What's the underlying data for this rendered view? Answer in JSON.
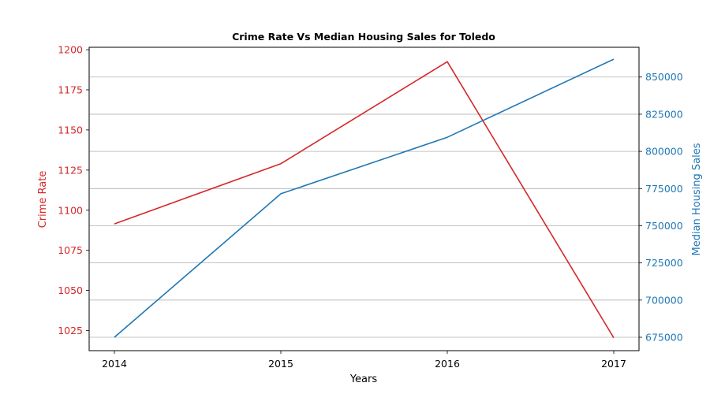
{
  "chart_data": {
    "type": "line",
    "title": "Crime Rate Vs Median Housing Sales for Toledo",
    "xlabel": "Years",
    "ylabel_left": "Crime Rate",
    "ylabel_right": "Median Housing Sales",
    "x": [
      "2014",
      "2015",
      "2016",
      "2017"
    ],
    "ylim_left": [
      1012.5,
      1201.5
    ],
    "ylim_right": [
      666000,
      870000
    ],
    "yticks_left": [
      1025,
      1050,
      1075,
      1100,
      1125,
      1150,
      1175,
      1200
    ],
    "yticks_right": [
      675000,
      700000,
      725000,
      750000,
      775000,
      800000,
      825000,
      850000
    ],
    "grid": "horizontal (right axis)",
    "series": [
      {
        "axis": "left",
        "color": "#d62728",
        "values": [
          1091.5,
          1129,
          1192.5,
          1020.5
        ]
      },
      {
        "axis": "right",
        "color": "#1f77b4",
        "values": [
          675000,
          771500,
          809500,
          862000
        ]
      }
    ]
  }
}
